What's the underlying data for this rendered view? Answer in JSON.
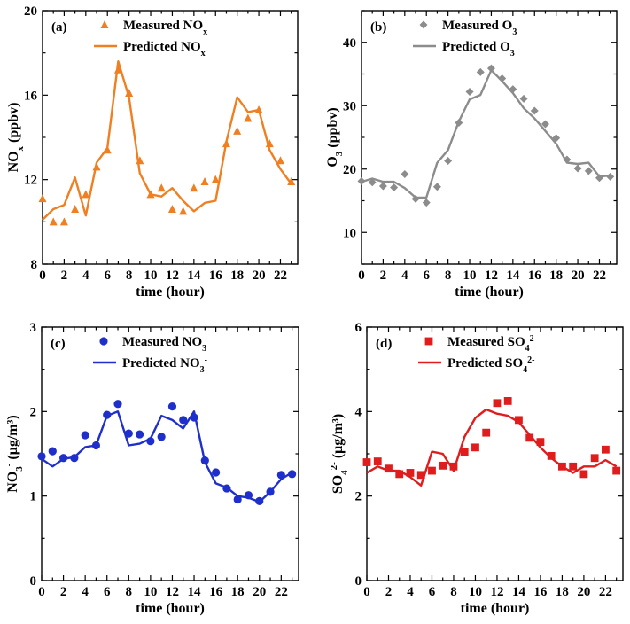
{
  "chart_data": [
    {
      "type": "line",
      "panel_label": "(a)",
      "color": "#f07f22",
      "marker": "triangle",
      "x": [
        0,
        1,
        2,
        3,
        4,
        5,
        6,
        7,
        8,
        9,
        10,
        11,
        12,
        13,
        14,
        15,
        16,
        17,
        18,
        19,
        20,
        21,
        22,
        23
      ],
      "xlim": [
        0,
        23.6
      ],
      "ylim": [
        8,
        20
      ],
      "x_ticks": [
        "0",
        "2",
        "4",
        "6",
        "8",
        "10",
        "12",
        "14",
        "16",
        "18",
        "20",
        "22"
      ],
      "y_ticks": [
        "8",
        "12",
        "16",
        "20"
      ],
      "xlabel": "time (hour)",
      "ylabel": {
        "main": "NO",
        "sub": "x",
        "suffix": " (ppbv)"
      },
      "series": [
        {
          "name": "Measured NOx",
          "label": {
            "main": "Measured NO",
            "sub": "x",
            "sup": ""
          },
          "kind": "scatter",
          "values": [
            11.1,
            10.0,
            10.0,
            10.6,
            11.3,
            12.6,
            13.4,
            17.2,
            16.1,
            12.9,
            11.3,
            11.6,
            10.6,
            10.5,
            11.6,
            11.9,
            12.0,
            13.7,
            14.3,
            14.9,
            15.3,
            13.7,
            12.9,
            11.9
          ]
        },
        {
          "name": "Predicted NOx",
          "label": {
            "main": "Predicted NO",
            "sub": "x",
            "sup": ""
          },
          "kind": "line",
          "values": [
            10.1,
            10.6,
            10.8,
            12.1,
            10.3,
            12.8,
            13.5,
            17.6,
            15.9,
            12.3,
            11.3,
            11.2,
            11.6,
            11.0,
            10.5,
            10.9,
            11.0,
            13.8,
            15.9,
            15.2,
            15.3,
            13.4,
            12.5,
            11.8
          ]
        }
      ]
    },
    {
      "type": "line",
      "panel_label": "(b)",
      "color": "#8c8c8c",
      "marker": "diamond",
      "x": [
        0,
        1,
        2,
        3,
        4,
        5,
        6,
        7,
        8,
        9,
        10,
        11,
        12,
        13,
        14,
        15,
        16,
        17,
        18,
        19,
        20,
        21,
        22,
        23
      ],
      "xlim": [
        0,
        23.6
      ],
      "ylim": [
        5,
        45
      ],
      "x_ticks": [
        "0",
        "2",
        "4",
        "6",
        "8",
        "10",
        "12",
        "14",
        "16",
        "18",
        "20",
        "22"
      ],
      "y_ticks": [
        "10",
        "20",
        "30",
        "40"
      ],
      "xlabel": "time (hour)",
      "ylabel": {
        "main": "O",
        "sub": "3",
        "suffix": " (ppbv)"
      },
      "series": [
        {
          "name": "Measured O3",
          "label": {
            "main": "Measured O",
            "sub": "3",
            "sup": ""
          },
          "kind": "scatter",
          "values": [
            18.1,
            17.9,
            17.3,
            17.1,
            19.2,
            15.3,
            14.7,
            17.2,
            21.3,
            27.3,
            32.2,
            35.3,
            35.9,
            34.3,
            32.6,
            31.1,
            29.2,
            27.1,
            24.9,
            21.5,
            20.1,
            19.7,
            18.6,
            18.8
          ]
        },
        {
          "name": "Predicted O3",
          "label": {
            "main": "Predicted O",
            "sub": "3",
            "sup": ""
          },
          "kind": "line",
          "values": [
            18.0,
            18.5,
            18.0,
            18.0,
            17.0,
            15.5,
            15.5,
            21.0,
            23.0,
            27.5,
            31.0,
            31.7,
            35.6,
            33.9,
            32.0,
            29.6,
            28.0,
            26.0,
            24.0,
            21.0,
            20.8,
            21.0,
            18.8,
            19.0
          ]
        }
      ]
    },
    {
      "type": "line",
      "panel_label": "(c)",
      "color": "#1f2fcc",
      "marker": "circle",
      "x": [
        0,
        1,
        2,
        3,
        4,
        5,
        6,
        7,
        8,
        9,
        10,
        11,
        12,
        13,
        14,
        15,
        16,
        17,
        18,
        19,
        20,
        21,
        22,
        23
      ],
      "xlim": [
        0,
        23.6
      ],
      "ylim": [
        0,
        3
      ],
      "x_ticks": [
        "0",
        "2",
        "4",
        "6",
        "8",
        "10",
        "12",
        "14",
        "16",
        "18",
        "20",
        "22"
      ],
      "y_ticks": [
        "0",
        "1",
        "2",
        "3"
      ],
      "xlabel": "time (hour)",
      "ylabel": {
        "main": "NO",
        "sub": "3",
        "sup": "-",
        "suffix": " (μg/m³)"
      },
      "series": [
        {
          "name": "Measured NO3-",
          "label": {
            "main": "Measured NO",
            "sub": "3",
            "sup": "-"
          },
          "kind": "scatter",
          "values": [
            1.47,
            1.53,
            1.45,
            1.45,
            1.72,
            1.6,
            1.96,
            2.09,
            1.74,
            1.73,
            1.65,
            1.7,
            2.06,
            1.9,
            1.93,
            1.42,
            1.28,
            1.09,
            0.96,
            1.01,
            0.94,
            1.05,
            1.25,
            1.26
          ]
        },
        {
          "name": "Predicted NO3-",
          "label": {
            "main": "Predicted NO",
            "sub": "3",
            "sup": "-"
          },
          "kind": "line",
          "values": [
            1.44,
            1.35,
            1.44,
            1.46,
            1.58,
            1.6,
            1.95,
            2.0,
            1.6,
            1.62,
            1.68,
            1.95,
            1.9,
            1.8,
            2.0,
            1.4,
            1.15,
            1.1,
            1.0,
            0.98,
            0.93,
            1.05,
            1.2,
            1.28
          ]
        }
      ]
    },
    {
      "type": "line",
      "panel_label": "(d)",
      "color": "#e01c1c",
      "marker": "square",
      "x": [
        0,
        1,
        2,
        3,
        4,
        5,
        6,
        7,
        8,
        9,
        10,
        11,
        12,
        13,
        14,
        15,
        16,
        17,
        18,
        19,
        20,
        21,
        22,
        23
      ],
      "xlim": [
        0,
        23.6
      ],
      "ylim": [
        0,
        6
      ],
      "x_ticks": [
        "0",
        "2",
        "4",
        "6",
        "8",
        "10",
        "12",
        "14",
        "16",
        "18",
        "20",
        "22"
      ],
      "y_ticks": [
        "0",
        "2",
        "4",
        "6"
      ],
      "xlabel": "time (hour)",
      "ylabel": {
        "main": "SO",
        "sub": "4",
        "sup": "2-",
        "suffix": " (μg/m³)"
      },
      "series": [
        {
          "name": "Measured SO42-",
          "label": {
            "main": "Measured SO",
            "sub": "4",
            "sup": "2-"
          },
          "kind": "scatter",
          "values": [
            2.8,
            2.82,
            2.65,
            2.52,
            2.55,
            2.5,
            2.6,
            2.72,
            2.7,
            3.05,
            3.15,
            3.5,
            4.2,
            4.25,
            3.8,
            3.38,
            3.28,
            2.95,
            2.7,
            2.7,
            2.52,
            2.9,
            3.1,
            2.6
          ]
        },
        {
          "name": "Predicted SO42-",
          "label": {
            "main": "Predicted SO",
            "sub": "4",
            "sup": "2-"
          },
          "kind": "line",
          "values": [
            2.55,
            2.7,
            2.6,
            2.6,
            2.45,
            2.25,
            3.05,
            3.0,
            2.6,
            3.4,
            3.85,
            4.05,
            3.95,
            3.9,
            3.75,
            3.45,
            3.15,
            2.9,
            2.7,
            2.55,
            2.7,
            2.7,
            2.85,
            2.7
          ]
        }
      ]
    }
  ]
}
